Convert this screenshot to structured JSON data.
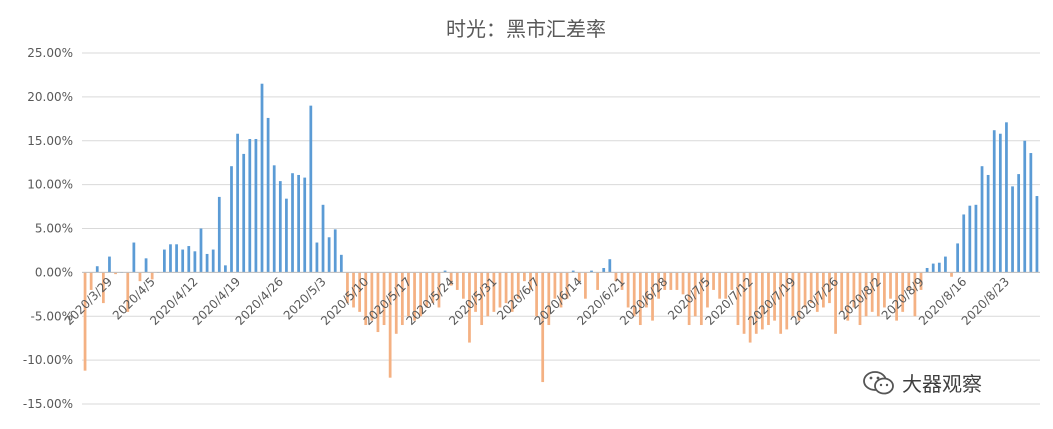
{
  "chart_data": {
    "type": "bar",
    "title": "时光：黑市汇差率",
    "ylim": [
      -0.15,
      0.25
    ],
    "y_ticks": [
      "25.00%",
      "20.00%",
      "15.00%",
      "10.00%",
      "5.00%",
      "0.00%",
      "-5.00%",
      "-10.00%",
      "-15.00%"
    ],
    "y_tick_values": [
      0.25,
      0.2,
      0.15,
      0.1,
      0.05,
      0,
      -0.05,
      -0.1,
      -0.15
    ],
    "x_tick_labels": [
      "2020/3/29",
      "2020/4/5",
      "2020/4/12",
      "2020/4/19",
      "2020/4/26",
      "2020/5/3",
      "2020/5/10",
      "2020/5/17",
      "2020/5/24",
      "2020/5/31",
      "2020/6/7",
      "2020/6/14",
      "2020/6/21",
      "2020/6/28",
      "2020/7/5",
      "2020/7/12",
      "2020/7/19",
      "2020/7/26",
      "2020/8/2",
      "2020/8/9",
      "2020/8/16",
      "2020/8/23"
    ],
    "x_tick_every": 7,
    "grid": true,
    "colors": {
      "positive": "#5b9bd5",
      "negative": "#f4b183"
    },
    "values": [
      -0.112,
      -0.02,
      0.007,
      -0.035,
      0.018,
      -0.002,
      0,
      -0.045,
      0.034,
      -0.01,
      0.016,
      -0.008,
      0,
      0.026,
      0.032,
      0.032,
      0.026,
      0.03,
      0.024,
      0.05,
      0.021,
      0.026,
      0.086,
      0.008,
      0.121,
      0.158,
      0.135,
      0.152,
      0.152,
      0.215,
      0.176,
      0.122,
      0.104,
      0.084,
      0.113,
      0.111,
      0.108,
      0.19,
      0.034,
      0.077,
      0.04,
      0.049,
      0.02,
      -0.035,
      -0.04,
      -0.045,
      -0.06,
      -0.055,
      -0.068,
      -0.06,
      -0.12,
      -0.07,
      -0.06,
      -0.05,
      -0.055,
      -0.05,
      -0.04,
      -0.035,
      -0.04,
      0.002,
      -0.015,
      -0.02,
      -0.03,
      -0.08,
      -0.045,
      -0.06,
      -0.05,
      -0.045,
      -0.04,
      -0.035,
      -0.045,
      -0.03,
      -0.01,
      -0.02,
      -0.05,
      -0.125,
      -0.06,
      -0.03,
      -0.04,
      -0.03,
      0.002,
      -0.01,
      -0.03,
      0.002,
      -0.02,
      0.005,
      0.015,
      -0.01,
      -0.02,
      -0.04,
      -0.05,
      -0.06,
      -0.04,
      -0.055,
      -0.03,
      -0.02,
      -0.02,
      -0.02,
      -0.025,
      -0.06,
      -0.05,
      -0.06,
      -0.04,
      -0.02,
      -0.03,
      -0.03,
      -0.02,
      -0.06,
      -0.07,
      -0.08,
      -0.07,
      -0.065,
      -0.06,
      -0.055,
      -0.07,
      -0.065,
      -0.05,
      -0.055,
      -0.04,
      -0.035,
      -0.045,
      -0.04,
      -0.035,
      -0.07,
      -0.045,
      -0.055,
      -0.04,
      -0.06,
      -0.05,
      -0.045,
      -0.05,
      -0.04,
      -0.03,
      -0.055,
      -0.045,
      -0.02,
      -0.05,
      -0.02,
      0.005,
      0.01,
      0.011,
      0.018,
      -0.005,
      0.033,
      0.066,
      0.076,
      0.077,
      0.121,
      0.111,
      0.162,
      0.158,
      0.171,
      0.098,
      0.112,
      0.15,
      0.136,
      0.087
    ]
  },
  "watermark": {
    "text": "大器观察",
    "icon": "wechat-icon"
  }
}
